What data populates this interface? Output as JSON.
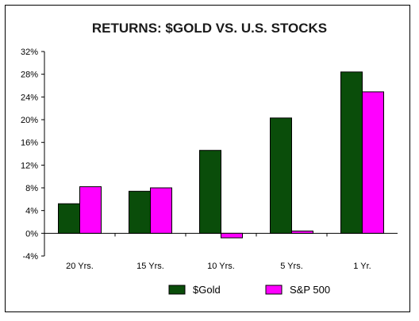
{
  "chart_data": {
    "type": "bar",
    "title": "RETURNS: $GOLD VS. U.S. STOCKS",
    "categories": [
      "20 Yrs.",
      "15 Yrs.",
      "10 Yrs.",
      "5 Yrs.",
      "1 Yr."
    ],
    "series": [
      {
        "name": "$Gold",
        "color": "#0a4d0a",
        "values": [
          5.2,
          7.4,
          14.6,
          20.3,
          28.4
        ]
      },
      {
        "name": "S&P 500",
        "color": "#ff00ff",
        "values": [
          8.2,
          8.0,
          -0.8,
          0.4,
          24.9
        ]
      }
    ],
    "ylim": [
      -4,
      32
    ],
    "yticks": [
      -4,
      0,
      4,
      8,
      12,
      16,
      20,
      24,
      28,
      32
    ],
    "ytick_labels": [
      "-4%",
      "0%",
      "4%",
      "8%",
      "12%",
      "16%",
      "20%",
      "24%",
      "28%",
      "32%"
    ],
    "legend_position": "bottom",
    "grid": false
  }
}
